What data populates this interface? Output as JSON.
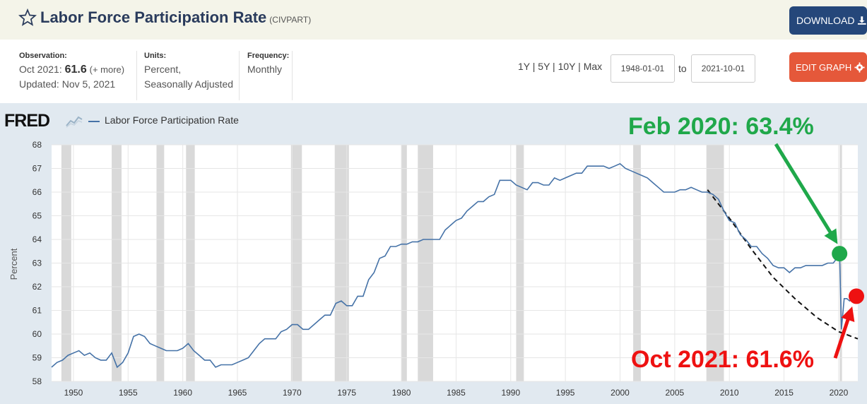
{
  "header": {
    "title": "Labor Force Participation Rate",
    "series_id": "(CIVPART)",
    "download_label": "DOWNLOAD",
    "icons": {
      "favorite": "star-outline-icon",
      "download": "download-icon",
      "edit": "gear-icon"
    }
  },
  "info": {
    "observation_label": "Observation:",
    "observation_date": "Oct 2021:",
    "observation_value": "61.6",
    "observation_more": "(+ more)",
    "updated": "Updated: Nov 5, 2021",
    "units_label": "Units:",
    "units_line1": "Percent,",
    "units_line2": "Seasonally Adjusted",
    "frequency_label": "Frequency:",
    "frequency_value": "Monthly"
  },
  "controls": {
    "ranges": [
      "1Y",
      "5Y",
      "10Y",
      "Max"
    ],
    "start_date": "1948-01-01",
    "to_label": "to",
    "end_date": "2021-10-01",
    "edit_label": "EDIT GRAPH"
  },
  "brand": {
    "logo_text": "FRED"
  },
  "annotations": {
    "peak": {
      "text": "Feb 2020: 63.4%",
      "x": 2020.08,
      "y": 63.4,
      "color": "#1fa84a"
    },
    "latest": {
      "text": "Oct 2021: 61.6%",
      "x": 2021.75,
      "y": 61.6,
      "color": "#ee1111"
    }
  },
  "chart_data": {
    "type": "line",
    "title": "",
    "xlabel": "",
    "ylabel": "Percent",
    "xlim": [
      1948.0,
      2021.75
    ],
    "ylim": [
      58,
      68
    ],
    "xticks": [
      1950,
      1955,
      1960,
      1965,
      1970,
      1975,
      1980,
      1985,
      1990,
      1995,
      2000,
      2005,
      2010,
      2015,
      2020
    ],
    "yticks": [
      58,
      59,
      60,
      61,
      62,
      63,
      64,
      65,
      66,
      67,
      68
    ],
    "grid": true,
    "legend_position": "top-left",
    "colors": {
      "line": "#4572a7",
      "recession": "#d9d9d9",
      "plot_bg": "#ffffff",
      "trend": "#111111"
    },
    "recessions": [
      [
        1948.9,
        1949.8
      ],
      [
        1953.5,
        1954.4
      ],
      [
        1957.6,
        1958.3
      ],
      [
        1960.3,
        1961.1
      ],
      [
        1969.9,
        1970.9
      ],
      [
        1973.9,
        1975.2
      ],
      [
        1980.0,
        1980.5
      ],
      [
        1981.5,
        1982.9
      ],
      [
        1990.5,
        1991.2
      ],
      [
        2001.2,
        2001.9
      ],
      [
        2007.9,
        2009.5
      ],
      [
        2020.1,
        2020.3
      ]
    ],
    "series": [
      {
        "name": "Labor Force Participation Rate",
        "x": [
          1948.0,
          1948.5,
          1949.0,
          1949.5,
          1950.0,
          1950.5,
          1951.0,
          1951.5,
          1952.0,
          1952.5,
          1953.0,
          1953.5,
          1954.0,
          1954.5,
          1955.0,
          1955.5,
          1956.0,
          1956.5,
          1957.0,
          1957.5,
          1958.0,
          1958.5,
          1959.0,
          1959.5,
          1960.0,
          1960.5,
          1961.0,
          1961.5,
          1962.0,
          1962.5,
          1963.0,
          1963.5,
          1964.0,
          1964.5,
          1965.0,
          1965.5,
          1966.0,
          1966.5,
          1967.0,
          1967.5,
          1968.0,
          1968.5,
          1969.0,
          1969.5,
          1970.0,
          1970.5,
          1971.0,
          1971.5,
          1972.0,
          1972.5,
          1973.0,
          1973.5,
          1974.0,
          1974.5,
          1975.0,
          1975.5,
          1976.0,
          1976.5,
          1977.0,
          1977.5,
          1978.0,
          1978.5,
          1979.0,
          1979.5,
          1980.0,
          1980.5,
          1981.0,
          1981.5,
          1982.0,
          1982.5,
          1983.0,
          1983.5,
          1984.0,
          1984.5,
          1985.0,
          1985.5,
          1986.0,
          1986.5,
          1987.0,
          1987.5,
          1988.0,
          1988.5,
          1989.0,
          1989.5,
          1990.0,
          1990.5,
          1991.0,
          1991.5,
          1992.0,
          1992.5,
          1993.0,
          1993.5,
          1994.0,
          1994.5,
          1995.0,
          1995.5,
          1996.0,
          1996.5,
          1997.0,
          1997.5,
          1998.0,
          1998.5,
          1999.0,
          1999.5,
          2000.0,
          2000.5,
          2001.0,
          2001.5,
          2002.0,
          2002.5,
          2003.0,
          2003.5,
          2004.0,
          2004.5,
          2005.0,
          2005.5,
          2006.0,
          2006.5,
          2007.0,
          2007.5,
          2008.0,
          2008.5,
          2009.0,
          2009.5,
          2010.0,
          2010.5,
          2011.0,
          2011.5,
          2012.0,
          2012.5,
          2013.0,
          2013.5,
          2014.0,
          2014.5,
          2015.0,
          2015.5,
          2016.0,
          2016.5,
          2017.0,
          2017.5,
          2018.0,
          2018.5,
          2019.0,
          2019.5,
          2020.0,
          2020.08,
          2020.25,
          2020.5,
          2020.75,
          2021.0,
          2021.25,
          2021.5,
          2021.75
        ],
        "values": [
          58.6,
          58.8,
          58.9,
          59.1,
          59.2,
          59.3,
          59.1,
          59.2,
          59.0,
          58.9,
          58.9,
          59.2,
          58.6,
          58.8,
          59.2,
          59.9,
          60.0,
          59.9,
          59.6,
          59.5,
          59.4,
          59.3,
          59.3,
          59.3,
          59.4,
          59.6,
          59.3,
          59.1,
          58.9,
          58.9,
          58.6,
          58.7,
          58.7,
          58.7,
          58.8,
          58.9,
          59.0,
          59.3,
          59.6,
          59.8,
          59.8,
          59.8,
          60.1,
          60.2,
          60.4,
          60.4,
          60.2,
          60.2,
          60.4,
          60.6,
          60.8,
          60.8,
          61.3,
          61.4,
          61.2,
          61.2,
          61.6,
          61.6,
          62.3,
          62.6,
          63.2,
          63.3,
          63.7,
          63.7,
          63.8,
          63.8,
          63.9,
          63.9,
          64.0,
          64.0,
          64.0,
          64.0,
          64.4,
          64.6,
          64.8,
          64.9,
          65.2,
          65.4,
          65.6,
          65.6,
          65.8,
          65.9,
          66.5,
          66.5,
          66.5,
          66.3,
          66.2,
          66.1,
          66.4,
          66.4,
          66.3,
          66.3,
          66.6,
          66.5,
          66.6,
          66.7,
          66.8,
          66.8,
          67.1,
          67.1,
          67.1,
          67.1,
          67.0,
          67.1,
          67.2,
          67.0,
          66.9,
          66.8,
          66.7,
          66.6,
          66.4,
          66.2,
          66.0,
          66.0,
          66.0,
          66.1,
          66.1,
          66.2,
          66.1,
          66.0,
          66.0,
          65.9,
          65.7,
          65.2,
          64.8,
          64.7,
          64.2,
          64.0,
          63.7,
          63.7,
          63.4,
          63.2,
          62.9,
          62.8,
          62.8,
          62.6,
          62.8,
          62.8,
          62.9,
          62.9,
          62.9,
          62.9,
          63.0,
          63.0,
          63.3,
          63.4,
          60.2,
          61.5,
          61.5,
          61.4,
          61.5,
          61.7,
          61.6
        ]
      }
    ],
    "trend": {
      "x": [
        2008.0,
        2010.0,
        2012.0,
        2014.0,
        2016.0,
        2018.0,
        2020.0,
        2021.75
      ],
      "values": [
        66.1,
        64.9,
        63.6,
        62.4,
        61.5,
        60.7,
        60.1,
        59.8
      ]
    }
  }
}
